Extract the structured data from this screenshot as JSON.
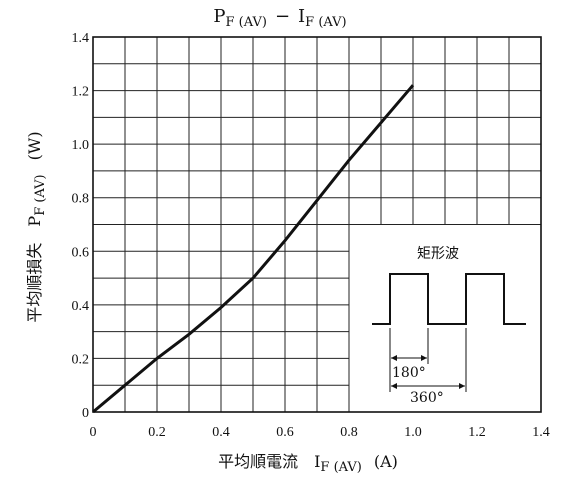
{
  "chart_data": {
    "type": "line",
    "title_main_left": "P",
    "title_sub_left": "F (AV)",
    "title_sep": "−",
    "title_main_right": "I",
    "title_sub_right": "F (AV)",
    "ylabel_jp": "平均順損失",
    "ylabel_sym": "P",
    "ylabel_sub": "F (AV)",
    "ylabel_unit": "(W)",
    "xlabel_jp": "平均順電流",
    "xlabel_sym": "I",
    "xlabel_sub": "F (AV)",
    "xlabel_unit": "(A)",
    "xlim": [
      0,
      1.4
    ],
    "ylim": [
      0,
      1.4
    ],
    "xticks": [
      "0",
      "0.2",
      "0.4",
      "0.6",
      "0.8",
      "1.0",
      "1.2",
      "1.4"
    ],
    "yticks": [
      "0",
      "0.2",
      "0.4",
      "0.6",
      "0.8",
      "1.0",
      "1.2",
      "1.4"
    ],
    "grid": true,
    "series": [
      {
        "x": [
          0,
          0.1,
          0.2,
          0.3,
          0.4,
          0.5,
          0.6,
          0.7,
          0.8,
          0.9,
          1.0
        ],
        "y": [
          0,
          0.1,
          0.2,
          0.29,
          0.39,
          0.5,
          0.64,
          0.79,
          0.94,
          1.08,
          1.22
        ]
      }
    ],
    "inset": {
      "title": "矩形波",
      "label_180": "180°",
      "label_360": "360°"
    }
  }
}
